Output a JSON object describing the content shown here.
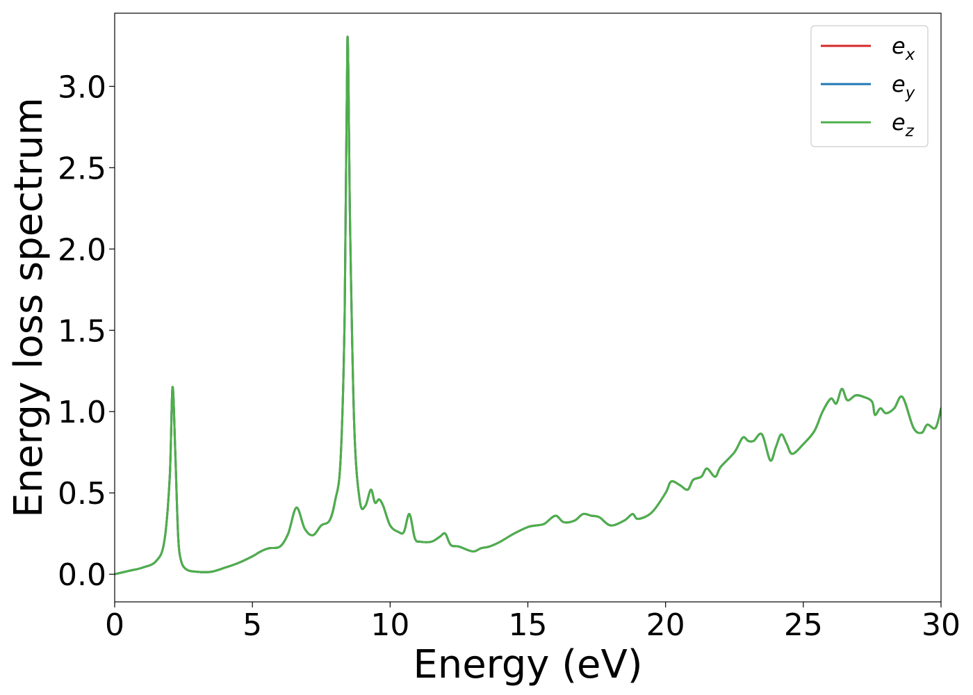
{
  "chart_data": {
    "type": "line",
    "title": "",
    "xlabel": "Energy (eV)",
    "ylabel": "Energy loss spectrum",
    "xlim": [
      0,
      30
    ],
    "ylim": [
      -0.17,
      3.45
    ],
    "xticks": [
      0,
      5,
      10,
      15,
      20,
      25,
      30
    ],
    "xtick_labels": [
      "0",
      "5",
      "10",
      "15",
      "20",
      "25",
      "30"
    ],
    "yticks": [
      0.0,
      0.5,
      1.0,
      1.5,
      2.0,
      2.5,
      3.0
    ],
    "ytick_labels": [
      "0.0",
      "0.5",
      "1.0",
      "1.5",
      "2.0",
      "2.5",
      "3.0"
    ],
    "grid": false,
    "legend_position": "top-right",
    "x": [
      0,
      0.5,
      1.0,
      1.5,
      1.8,
      2.0,
      2.1,
      2.2,
      2.3,
      2.4,
      2.6,
      3.0,
      3.5,
      4.0,
      4.5,
      5.0,
      5.3,
      5.6,
      6.0,
      6.3,
      6.6,
      6.9,
      7.2,
      7.5,
      7.8,
      8.0,
      8.2,
      8.35,
      8.45,
      8.55,
      8.7,
      8.9,
      9.1,
      9.3,
      9.45,
      9.6,
      9.75,
      10.0,
      10.3,
      10.5,
      10.7,
      10.9,
      11.1,
      11.5,
      11.8,
      12.0,
      12.2,
      12.5,
      13.0,
      13.3,
      13.6,
      14.0,
      14.5,
      15.0,
      15.3,
      15.6,
      16.0,
      16.3,
      16.7,
      17.0,
      17.3,
      17.6,
      18.0,
      18.5,
      18.8,
      19.0,
      19.5,
      20.0,
      20.2,
      20.5,
      20.8,
      21.0,
      21.3,
      21.5,
      21.8,
      22.0,
      22.5,
      22.8,
      23.0,
      23.2,
      23.5,
      23.8,
      24.0,
      24.2,
      24.4,
      24.6,
      25.0,
      25.4,
      25.7,
      26.0,
      26.2,
      26.4,
      26.6,
      26.9,
      27.2,
      27.5,
      27.6,
      27.8,
      28.0,
      28.3,
      28.6,
      29.0,
      29.3,
      29.5,
      29.8,
      30.0
    ],
    "series": [
      {
        "name": "e_x",
        "color": "#d62728",
        "values": [
          0.0,
          0.02,
          0.04,
          0.08,
          0.2,
          0.6,
          1.15,
          0.75,
          0.25,
          0.09,
          0.03,
          0.015,
          0.015,
          0.04,
          0.07,
          0.11,
          0.14,
          0.16,
          0.17,
          0.25,
          0.41,
          0.28,
          0.24,
          0.3,
          0.33,
          0.45,
          0.7,
          1.6,
          3.3,
          2.1,
          0.9,
          0.45,
          0.42,
          0.52,
          0.44,
          0.46,
          0.42,
          0.3,
          0.26,
          0.26,
          0.37,
          0.22,
          0.2,
          0.2,
          0.23,
          0.25,
          0.18,
          0.17,
          0.14,
          0.16,
          0.17,
          0.2,
          0.25,
          0.29,
          0.3,
          0.31,
          0.36,
          0.32,
          0.33,
          0.37,
          0.36,
          0.35,
          0.3,
          0.33,
          0.37,
          0.34,
          0.38,
          0.5,
          0.57,
          0.55,
          0.52,
          0.58,
          0.6,
          0.65,
          0.6,
          0.66,
          0.75,
          0.84,
          0.82,
          0.82,
          0.86,
          0.7,
          0.78,
          0.86,
          0.8,
          0.74,
          0.8,
          0.88,
          1.0,
          1.08,
          1.05,
          1.14,
          1.07,
          1.1,
          1.09,
          1.06,
          0.98,
          1.02,
          0.99,
          1.02,
          1.09,
          0.9,
          0.87,
          0.92,
          0.9,
          1.02
        ]
      },
      {
        "name": "e_y",
        "color": "#1f77b4",
        "values": [
          0.0,
          0.02,
          0.04,
          0.08,
          0.2,
          0.6,
          1.15,
          0.75,
          0.25,
          0.09,
          0.03,
          0.015,
          0.015,
          0.04,
          0.07,
          0.11,
          0.14,
          0.16,
          0.17,
          0.25,
          0.41,
          0.28,
          0.24,
          0.3,
          0.33,
          0.45,
          0.7,
          1.6,
          3.3,
          2.1,
          0.9,
          0.45,
          0.42,
          0.52,
          0.44,
          0.46,
          0.42,
          0.3,
          0.26,
          0.26,
          0.37,
          0.22,
          0.2,
          0.2,
          0.23,
          0.25,
          0.18,
          0.17,
          0.14,
          0.16,
          0.17,
          0.2,
          0.25,
          0.29,
          0.3,
          0.31,
          0.36,
          0.32,
          0.33,
          0.37,
          0.36,
          0.35,
          0.3,
          0.33,
          0.37,
          0.34,
          0.38,
          0.5,
          0.57,
          0.55,
          0.52,
          0.58,
          0.6,
          0.65,
          0.6,
          0.66,
          0.75,
          0.84,
          0.82,
          0.82,
          0.86,
          0.7,
          0.78,
          0.86,
          0.8,
          0.74,
          0.8,
          0.88,
          1.0,
          1.08,
          1.05,
          1.14,
          1.07,
          1.1,
          1.09,
          1.06,
          0.98,
          1.02,
          0.99,
          1.02,
          1.09,
          0.9,
          0.87,
          0.92,
          0.9,
          1.02
        ]
      },
      {
        "name": "e_z",
        "color": "#4daf4a",
        "values": [
          0.0,
          0.02,
          0.04,
          0.08,
          0.2,
          0.6,
          1.15,
          0.75,
          0.25,
          0.09,
          0.03,
          0.015,
          0.015,
          0.04,
          0.07,
          0.11,
          0.14,
          0.16,
          0.17,
          0.25,
          0.41,
          0.28,
          0.24,
          0.3,
          0.33,
          0.45,
          0.7,
          1.6,
          3.3,
          2.1,
          0.9,
          0.45,
          0.42,
          0.52,
          0.44,
          0.46,
          0.42,
          0.3,
          0.26,
          0.26,
          0.37,
          0.22,
          0.2,
          0.2,
          0.23,
          0.25,
          0.18,
          0.17,
          0.14,
          0.16,
          0.17,
          0.2,
          0.25,
          0.29,
          0.3,
          0.31,
          0.36,
          0.32,
          0.33,
          0.37,
          0.36,
          0.35,
          0.3,
          0.33,
          0.37,
          0.34,
          0.38,
          0.5,
          0.57,
          0.55,
          0.52,
          0.58,
          0.6,
          0.65,
          0.6,
          0.66,
          0.75,
          0.84,
          0.82,
          0.82,
          0.86,
          0.7,
          0.78,
          0.86,
          0.8,
          0.74,
          0.8,
          0.88,
          1.0,
          1.08,
          1.05,
          1.14,
          1.07,
          1.1,
          1.09,
          1.06,
          0.98,
          1.02,
          0.99,
          1.02,
          1.09,
          0.9,
          0.87,
          0.92,
          0.9,
          1.02
        ]
      }
    ],
    "legend": [
      {
        "base": "e",
        "sub": "x",
        "color": "#d62728"
      },
      {
        "base": "e",
        "sub": "y",
        "color": "#1f77b4"
      },
      {
        "base": "e",
        "sub": "z",
        "color": "#4daf4a"
      }
    ]
  }
}
